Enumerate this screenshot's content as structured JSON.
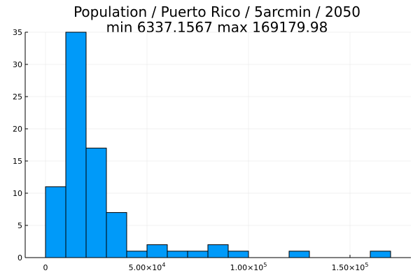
{
  "chart_data": {
    "type": "bar",
    "title": "Population / Puerto Rico / 5arcmin / 2050",
    "subtitle": "min 6337.1567  max 169179.98",
    "xlabel": "",
    "ylabel": "",
    "bin_edges": [
      0,
      10000,
      20000,
      30000,
      40000,
      50000,
      60000,
      70000,
      80000,
      90000,
      100000,
      110000,
      120000,
      130000,
      140000,
      150000,
      160000,
      170000
    ],
    "values": [
      11,
      35,
      17,
      7,
      1,
      2,
      1,
      1,
      2,
      1,
      0,
      0,
      1,
      0,
      0,
      0,
      1
    ],
    "xlim": [
      -10000,
      180000
    ],
    "ylim": [
      0,
      35
    ],
    "x_ticks": [
      {
        "value": 0,
        "label": "0",
        "exp": ""
      },
      {
        "value": 50000,
        "label": "5.00×10",
        "exp": "4"
      },
      {
        "value": 100000,
        "label": "1.00×10",
        "exp": "5"
      },
      {
        "value": 150000,
        "label": "1.50×10",
        "exp": "5"
      }
    ],
    "y_ticks": [
      {
        "value": 0,
        "label": "0"
      },
      {
        "value": 5,
        "label": "5"
      },
      {
        "value": 10,
        "label": "10"
      },
      {
        "value": 15,
        "label": "15"
      },
      {
        "value": 20,
        "label": "20"
      },
      {
        "value": 25,
        "label": "25"
      },
      {
        "value": 30,
        "label": "30"
      },
      {
        "value": 35,
        "label": "35"
      }
    ],
    "grid": true,
    "legend": "none",
    "bar_color": "#009af9",
    "bar_edge_color": "#000000"
  }
}
